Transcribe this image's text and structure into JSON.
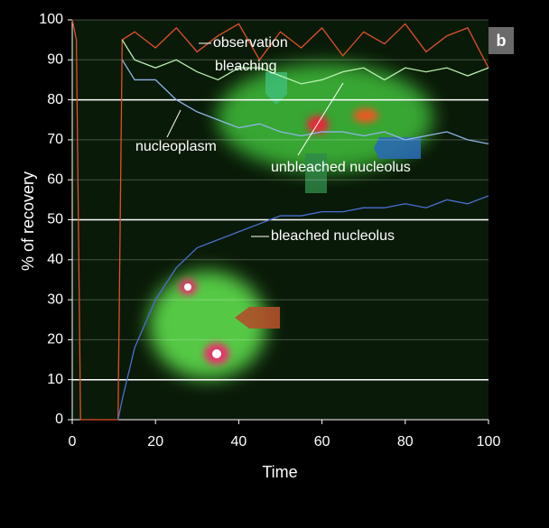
{
  "chart_data": {
    "type": "line",
    "title": "b",
    "x_label": "Time",
    "y_label": "% of recovery",
    "x": [
      0,
      1,
      2,
      11,
      12,
      15,
      20,
      25,
      30,
      35,
      40,
      45,
      50,
      55,
      60,
      65,
      70,
      75,
      80,
      85,
      90,
      95,
      100
    ],
    "series": [
      {
        "color": "#e0502a",
        "values": [
          100,
          95,
          0,
          0,
          95,
          97,
          93,
          98,
          92,
          96,
          99,
          90,
          97,
          93,
          98,
          91,
          97,
          94,
          99,
          92,
          96,
          98,
          88
        ]
      },
      {
        "color": "#b8f0b0",
        "values": [
          null,
          null,
          null,
          null,
          95,
          90,
          88,
          90,
          87,
          85,
          88,
          88,
          86,
          84,
          85,
          87,
          88,
          85,
          88,
          87,
          88,
          86,
          88
        ]
      },
      {
        "color": "#8fb4e8",
        "values": [
          null,
          null,
          null,
          null,
          90,
          85,
          85,
          80,
          77,
          75,
          73,
          74,
          72,
          71,
          72,
          72,
          71,
          72,
          70,
          71,
          72,
          70,
          69
        ]
      },
      {
        "color": "#4a6fd0",
        "values": [
          null,
          null,
          null,
          0,
          5,
          18,
          30,
          38,
          43,
          45,
          47,
          49,
          51,
          51,
          52,
          52,
          53,
          53,
          54,
          53,
          55,
          54,
          56
        ]
      }
    ],
    "annotations": [
      "observation",
      "bleaching",
      "nucleoplasm",
      "unbleached nucleolus",
      "bleached nucleolus"
    ],
    "xlim": [
      0,
      100
    ],
    "ylim": [
      0,
      100
    ],
    "xticks": [
      0,
      20,
      40,
      60,
      80,
      100
    ],
    "yticks": [
      0,
      10,
      20,
      30,
      40,
      50,
      60,
      70,
      80,
      90,
      100
    ],
    "reference_lines": [
      10,
      50,
      80
    ],
    "grid": true
  }
}
